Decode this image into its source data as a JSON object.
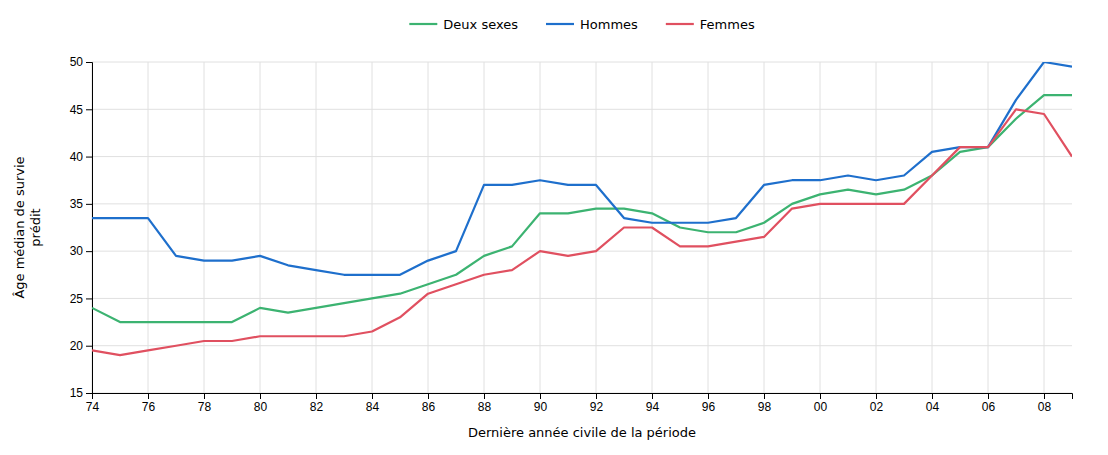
{
  "chart_data": {
    "type": "line",
    "xlabel": "Dernière année civile de la période",
    "ylabel": "Âge médian de survie\nprédit",
    "x": [
      74,
      75,
      76,
      77,
      78,
      79,
      80,
      81,
      82,
      83,
      84,
      85,
      86,
      87,
      88,
      89,
      90,
      91,
      92,
      93,
      94,
      95,
      96,
      97,
      98,
      99,
      100,
      101,
      102,
      103,
      104,
      105,
      106,
      107,
      108,
      109
    ],
    "series": [
      {
        "name": "Deux sexes",
        "color": "#3cb371",
        "values": [
          24.0,
          22.5,
          22.5,
          22.5,
          22.5,
          22.5,
          24.0,
          23.5,
          24.0,
          24.5,
          25.0,
          25.5,
          26.5,
          27.5,
          29.5,
          30.5,
          34.0,
          34.0,
          34.5,
          34.5,
          34.0,
          32.5,
          32.0,
          32.0,
          33.0,
          35.0,
          36.0,
          36.5,
          36.0,
          36.5,
          38.0,
          40.5,
          41.0,
          44.0,
          46.5,
          46.5
        ]
      },
      {
        "name": "Hommes",
        "color": "#1e6fcc",
        "values": [
          33.5,
          33.5,
          33.5,
          29.5,
          29.0,
          29.0,
          29.5,
          28.5,
          28.0,
          27.5,
          27.5,
          27.5,
          29.0,
          30.0,
          37.0,
          37.0,
          37.5,
          37.0,
          37.0,
          33.5,
          33.0,
          33.0,
          33.0,
          33.5,
          37.0,
          37.5,
          37.5,
          38.0,
          37.5,
          38.0,
          40.5,
          41.0,
          41.0,
          46.0,
          50.0,
          49.5
        ]
      },
      {
        "name": "Femmes",
        "color": "#e05060",
        "values": [
          19.5,
          19.0,
          19.5,
          20.0,
          20.5,
          20.5,
          21.0,
          21.0,
          21.0,
          21.0,
          21.5,
          23.0,
          25.5,
          26.5,
          27.5,
          28.0,
          30.0,
          29.5,
          30.0,
          32.5,
          32.5,
          30.5,
          30.5,
          31.0,
          31.5,
          34.5,
          35.0,
          35.0,
          35.0,
          35.0,
          38.0,
          41.0,
          41.0,
          45.0,
          44.5,
          40.0
        ]
      }
    ],
    "xlim": [
      74,
      109
    ],
    "xticks": [
      74,
      76,
      78,
      80,
      82,
      84,
      86,
      88,
      90,
      92,
      94,
      96,
      98,
      {
        "value": 100,
        "label": "00"
      },
      {
        "value": 102,
        "label": "02"
      },
      {
        "value": 104,
        "label": "04"
      },
      {
        "value": 106,
        "label": "06"
      },
      {
        "value": 108,
        "label": "08"
      }
    ],
    "ylim": [
      15,
      50
    ],
    "yticks": [
      15,
      20,
      25,
      30,
      35,
      40,
      45,
      50
    ],
    "grid": true,
    "legend": "top"
  }
}
